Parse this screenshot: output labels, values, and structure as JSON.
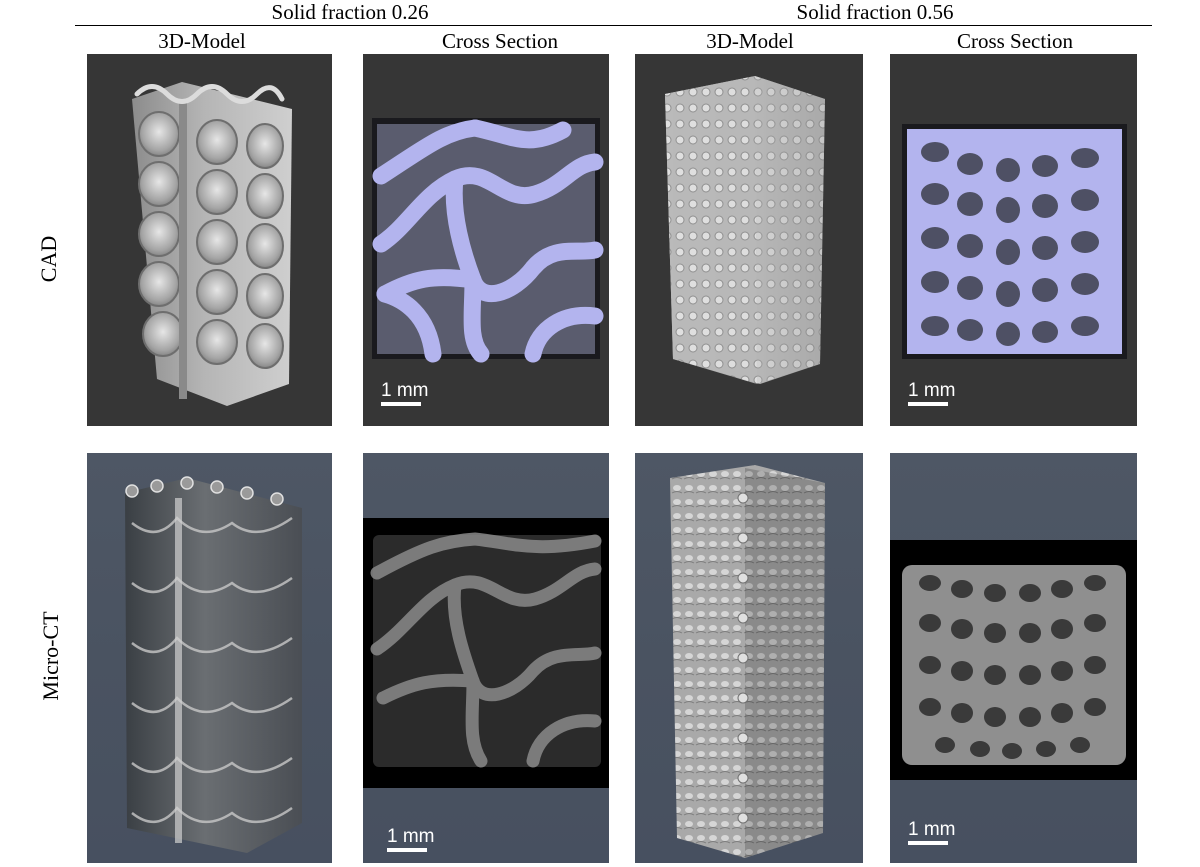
{
  "header": {
    "group_left": "Solid fraction 0.26",
    "group_right": "Solid fraction 0.56",
    "col_model": "3D-Model",
    "col_section": "Cross Section"
  },
  "rows": {
    "cad": "CAD",
    "ct": "Micro-CT"
  },
  "scale_label": "1 mm",
  "colors": {
    "cad_background": "#363636",
    "ct_background": "#4b5462",
    "cad_section_fill": "#b3b4ee",
    "cad_model_gray": "#a9a9a9"
  }
}
